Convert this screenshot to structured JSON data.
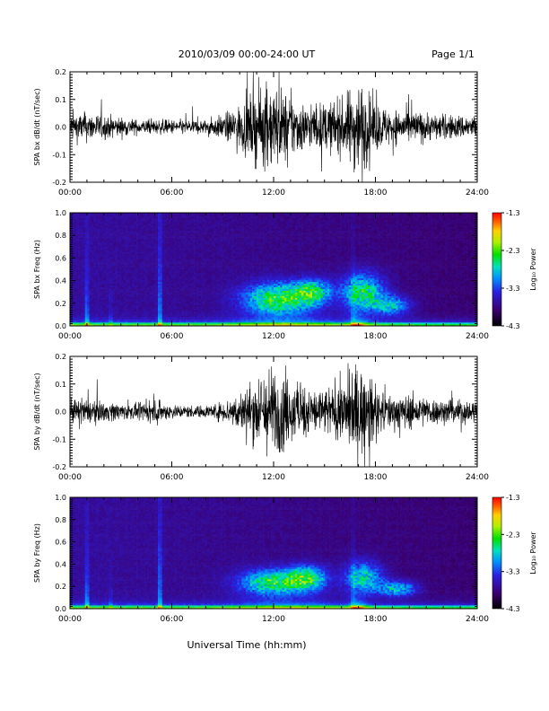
{
  "header": {
    "title": "2010/03/09  00:00-24:00 UT",
    "page_label": "Page 1/1"
  },
  "footer": {
    "xlabel": "Universal Time (hh:mm)"
  },
  "colorbar": {
    "label": "Log₁₀ Power",
    "ticks": [
      "-1.3",
      "-2.3",
      "-3.3",
      "-4.3"
    ],
    "range": [
      -4.3,
      -1.3
    ]
  },
  "chart_data": [
    {
      "id": "bx_waveform",
      "type": "line",
      "ylabel": "SPA bx dB/dt (nT/sec)",
      "xlim": [
        0,
        24
      ],
      "ylim": [
        -0.2,
        0.2
      ],
      "xtick_labels": [
        "00:00",
        "06:00",
        "12:00",
        "18:00",
        "24:00"
      ],
      "ytick_labels": [
        "-0.2",
        "-0.1",
        "0.0",
        "0.1",
        "0.2"
      ],
      "activity_hours": [
        0,
        1,
        2,
        3,
        4,
        5,
        6,
        7,
        8,
        9,
        10,
        11,
        12,
        13,
        14,
        15,
        16,
        17,
        18,
        19,
        20,
        21,
        22,
        23,
        24
      ],
      "activity_envelope": [
        0.06,
        0.06,
        0.05,
        0.04,
        0.03,
        0.03,
        0.03,
        0.03,
        0.03,
        0.05,
        0.09,
        0.15,
        0.18,
        0.13,
        0.09,
        0.1,
        0.11,
        0.2,
        0.1,
        0.07,
        0.07,
        0.06,
        0.05,
        0.05,
        0.05
      ]
    },
    {
      "id": "bx_spectrogram",
      "type": "heatmap",
      "ylabel": "SPA bx Freq (Hz)",
      "xlim": [
        0,
        24
      ],
      "ylim": [
        0,
        1.0
      ],
      "xtick_labels": [
        "00:00",
        "06:00",
        "12:00",
        "18:00",
        "24:00"
      ],
      "ytick_labels": [
        "0.0",
        "0.2",
        "0.4",
        "0.6",
        "0.8",
        "1.0"
      ],
      "features": "broadband enhancement 10-15 UT and 16-20 UT at 0.1-0.4 Hz; strongest power near 0 Hz at ~17 UT; vertical streaks near 1 UT and 5.3 UT"
    },
    {
      "id": "by_waveform",
      "type": "line",
      "ylabel": "SPA by dB/dt (nT/sec)",
      "xlim": [
        0,
        24
      ],
      "ylim": [
        -0.2,
        0.2
      ],
      "xtick_labels": [
        "00:00",
        "06:00",
        "12:00",
        "18:00",
        "24:00"
      ],
      "ytick_labels": [
        "-0.2",
        "-0.1",
        "0.0",
        "0.1",
        "0.2"
      ],
      "activity_hours": [
        0,
        1,
        2,
        3,
        4,
        5,
        6,
        7,
        8,
        9,
        10,
        11,
        12,
        13,
        14,
        15,
        16,
        17,
        18,
        19,
        20,
        21,
        22,
        23,
        24
      ],
      "activity_envelope": [
        0.05,
        0.05,
        0.04,
        0.035,
        0.03,
        0.045,
        0.03,
        0.025,
        0.025,
        0.04,
        0.08,
        0.14,
        0.19,
        0.13,
        0.1,
        0.1,
        0.12,
        0.2,
        0.1,
        0.07,
        0.07,
        0.06,
        0.05,
        0.05,
        0.05
      ]
    },
    {
      "id": "by_spectrogram",
      "type": "heatmap",
      "ylabel": "SPA by Freq (Hz)",
      "xlim": [
        0,
        24
      ],
      "ylim": [
        0,
        1.0
      ],
      "xtick_labels": [
        "00:00",
        "06:00",
        "12:00",
        "18:00",
        "24:00"
      ],
      "ytick_labels": [
        "0.0",
        "0.2",
        "0.4",
        "0.6",
        "0.8",
        "1.0"
      ],
      "features": "broadband enhancement 10-15 UT and 17-20 UT at 0.15-0.35 Hz; strongest power near 0 Hz at ~17 UT; vertical streaks near 1 UT and 5.3 UT"
    }
  ]
}
